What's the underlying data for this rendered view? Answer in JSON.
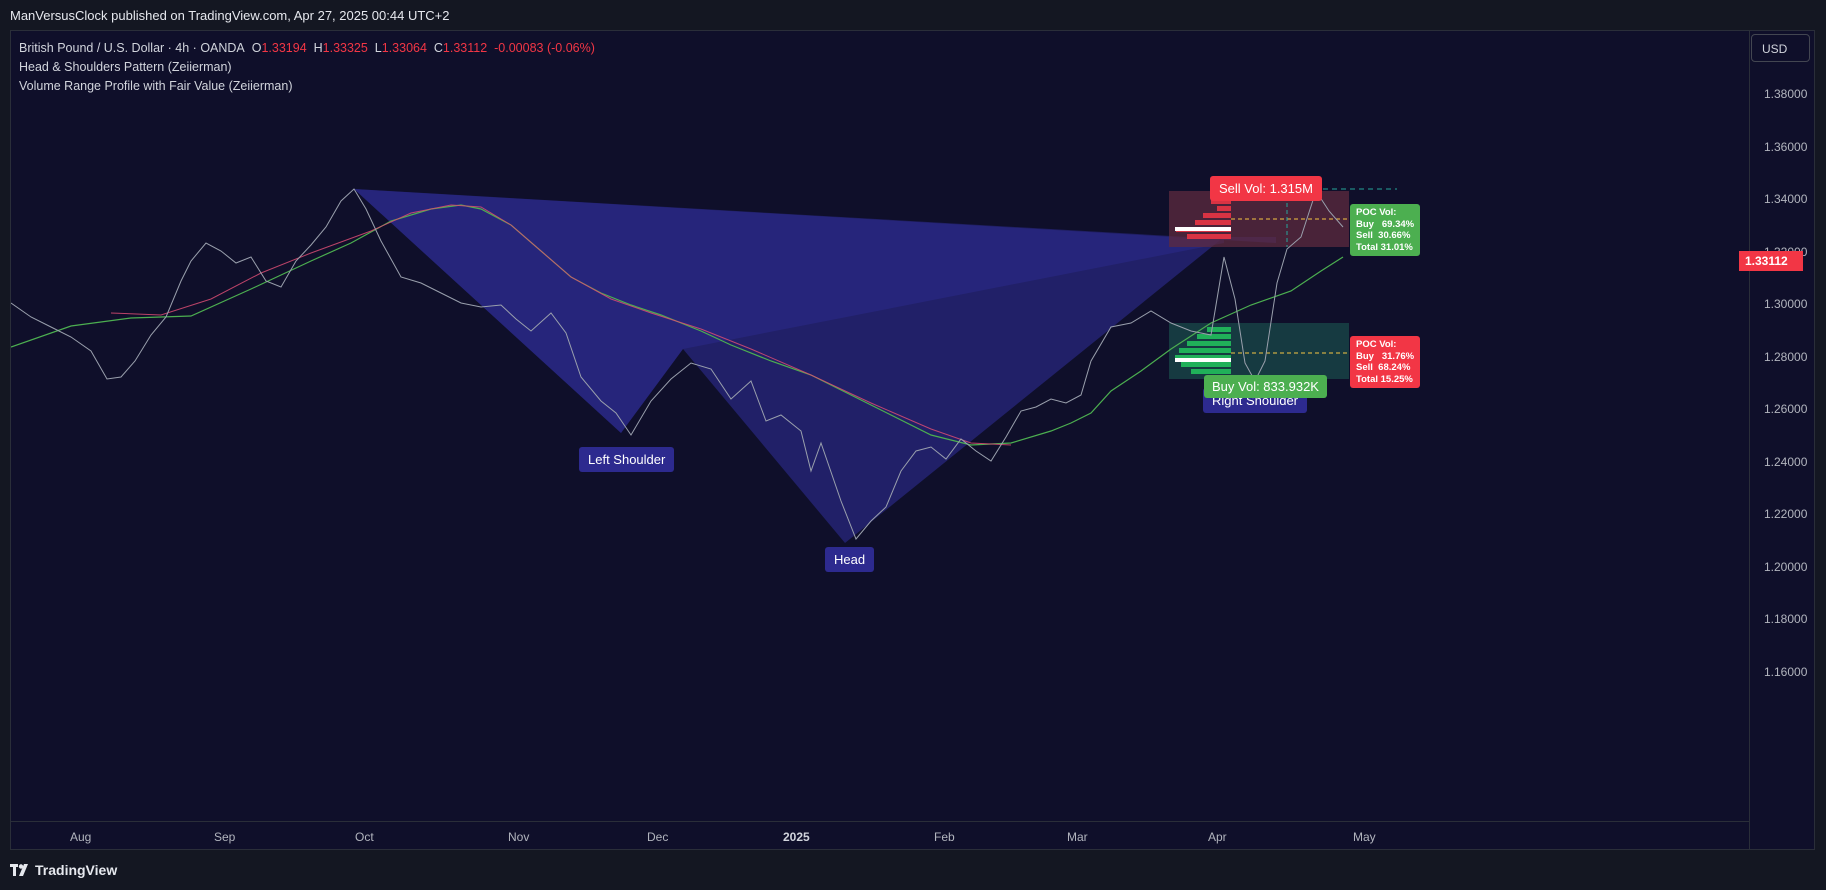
{
  "header": {
    "published": "ManVersusClock published on TradingView.com, Apr 27, 2025 00:44 UTC+2"
  },
  "legend": {
    "symbol": "British Pound / U.S. Dollar · 4h · OANDA",
    "open_label": "O",
    "open": "1.33194",
    "high_label": "H",
    "high": "1.33325",
    "low_label": "L",
    "low": "1.33064",
    "close_label": "C",
    "close": "1.33112",
    "change": "-0.00083 (-0.06%)",
    "indicator1": "Head & Shoulders Pattern (Zeiierman)",
    "indicator2": "Volume Range Profile with Fair Value (Zeiierman)"
  },
  "currency_button": "USD",
  "last_price": "1.33112",
  "price_ticks": [
    "1.38000",
    "1.36000",
    "1.34000",
    "1.32000",
    "1.30000",
    "1.28000",
    "1.26000",
    "1.24000",
    "1.22000",
    "1.20000",
    "1.18000",
    "1.16000"
  ],
  "time_ticks": [
    "Aug",
    "Sep",
    "Oct",
    "Nov",
    "Dec",
    "2025",
    "Feb",
    "Mar",
    "Apr",
    "May"
  ],
  "pattern_labels": {
    "left_shoulder": "Left Shoulder",
    "head": "Head",
    "right_shoulder": "Right Shoulder"
  },
  "volume_profile": {
    "sell_vol": "Sell Vol: 1.315M",
    "buy_vol": "Buy Vol: 833.932K",
    "poc_top": "POC Vol:\nBuy   69.34%\nSell  30.66%\nTotal 31.01%",
    "poc_bottom": "POC Vol:\nBuy   31.76%\nSell  68.24%\nTotal 15.25%"
  },
  "colors": {
    "bull": "#26a69a",
    "bear": "#f23645",
    "pattern_fill": "#2b2a8a",
    "label_bg": "#2d2a8f",
    "green_label": "#4caf50",
    "red_label": "#f23645"
  },
  "footer": {
    "brand": "TradingView"
  }
}
